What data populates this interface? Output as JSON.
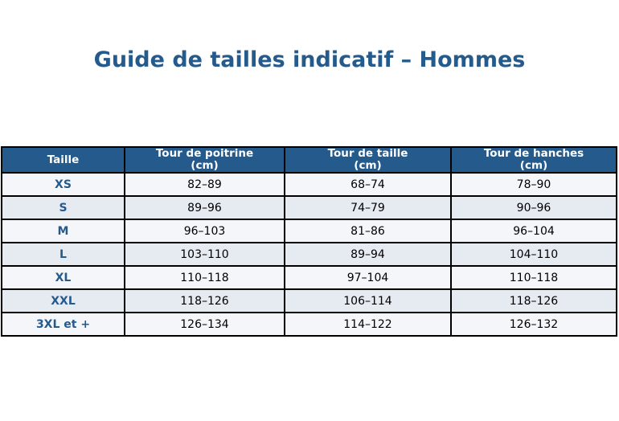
{
  "title": "Guide de tailles indicatif – Hommes",
  "table": {
    "headers": [
      "Taille",
      "Tour de poitrine\n(cm)",
      "Tour de taille\n(cm)",
      "Tour de hanches\n(cm)"
    ],
    "rows": [
      [
        "XS",
        "82–89",
        "68–74",
        "78–90"
      ],
      [
        "S",
        "89–96",
        "74–79",
        "90–96"
      ],
      [
        "M",
        "96–103",
        "81–86",
        "96–104"
      ],
      [
        "L",
        "103–110",
        "89–94",
        "104–110"
      ],
      [
        "XL",
        "110–118",
        "97–104",
        "110–118"
      ],
      [
        "XXL",
        "118–126",
        "106–114",
        "118–126"
      ],
      [
        "3XL et +",
        "126–134",
        "114–122",
        "126–132"
      ]
    ]
  },
  "colors": {
    "header_bg": "#255a8c",
    "size_text": "#255a8c",
    "row_odd": "#f4f6fa",
    "row_even": "#e6eaf1"
  }
}
